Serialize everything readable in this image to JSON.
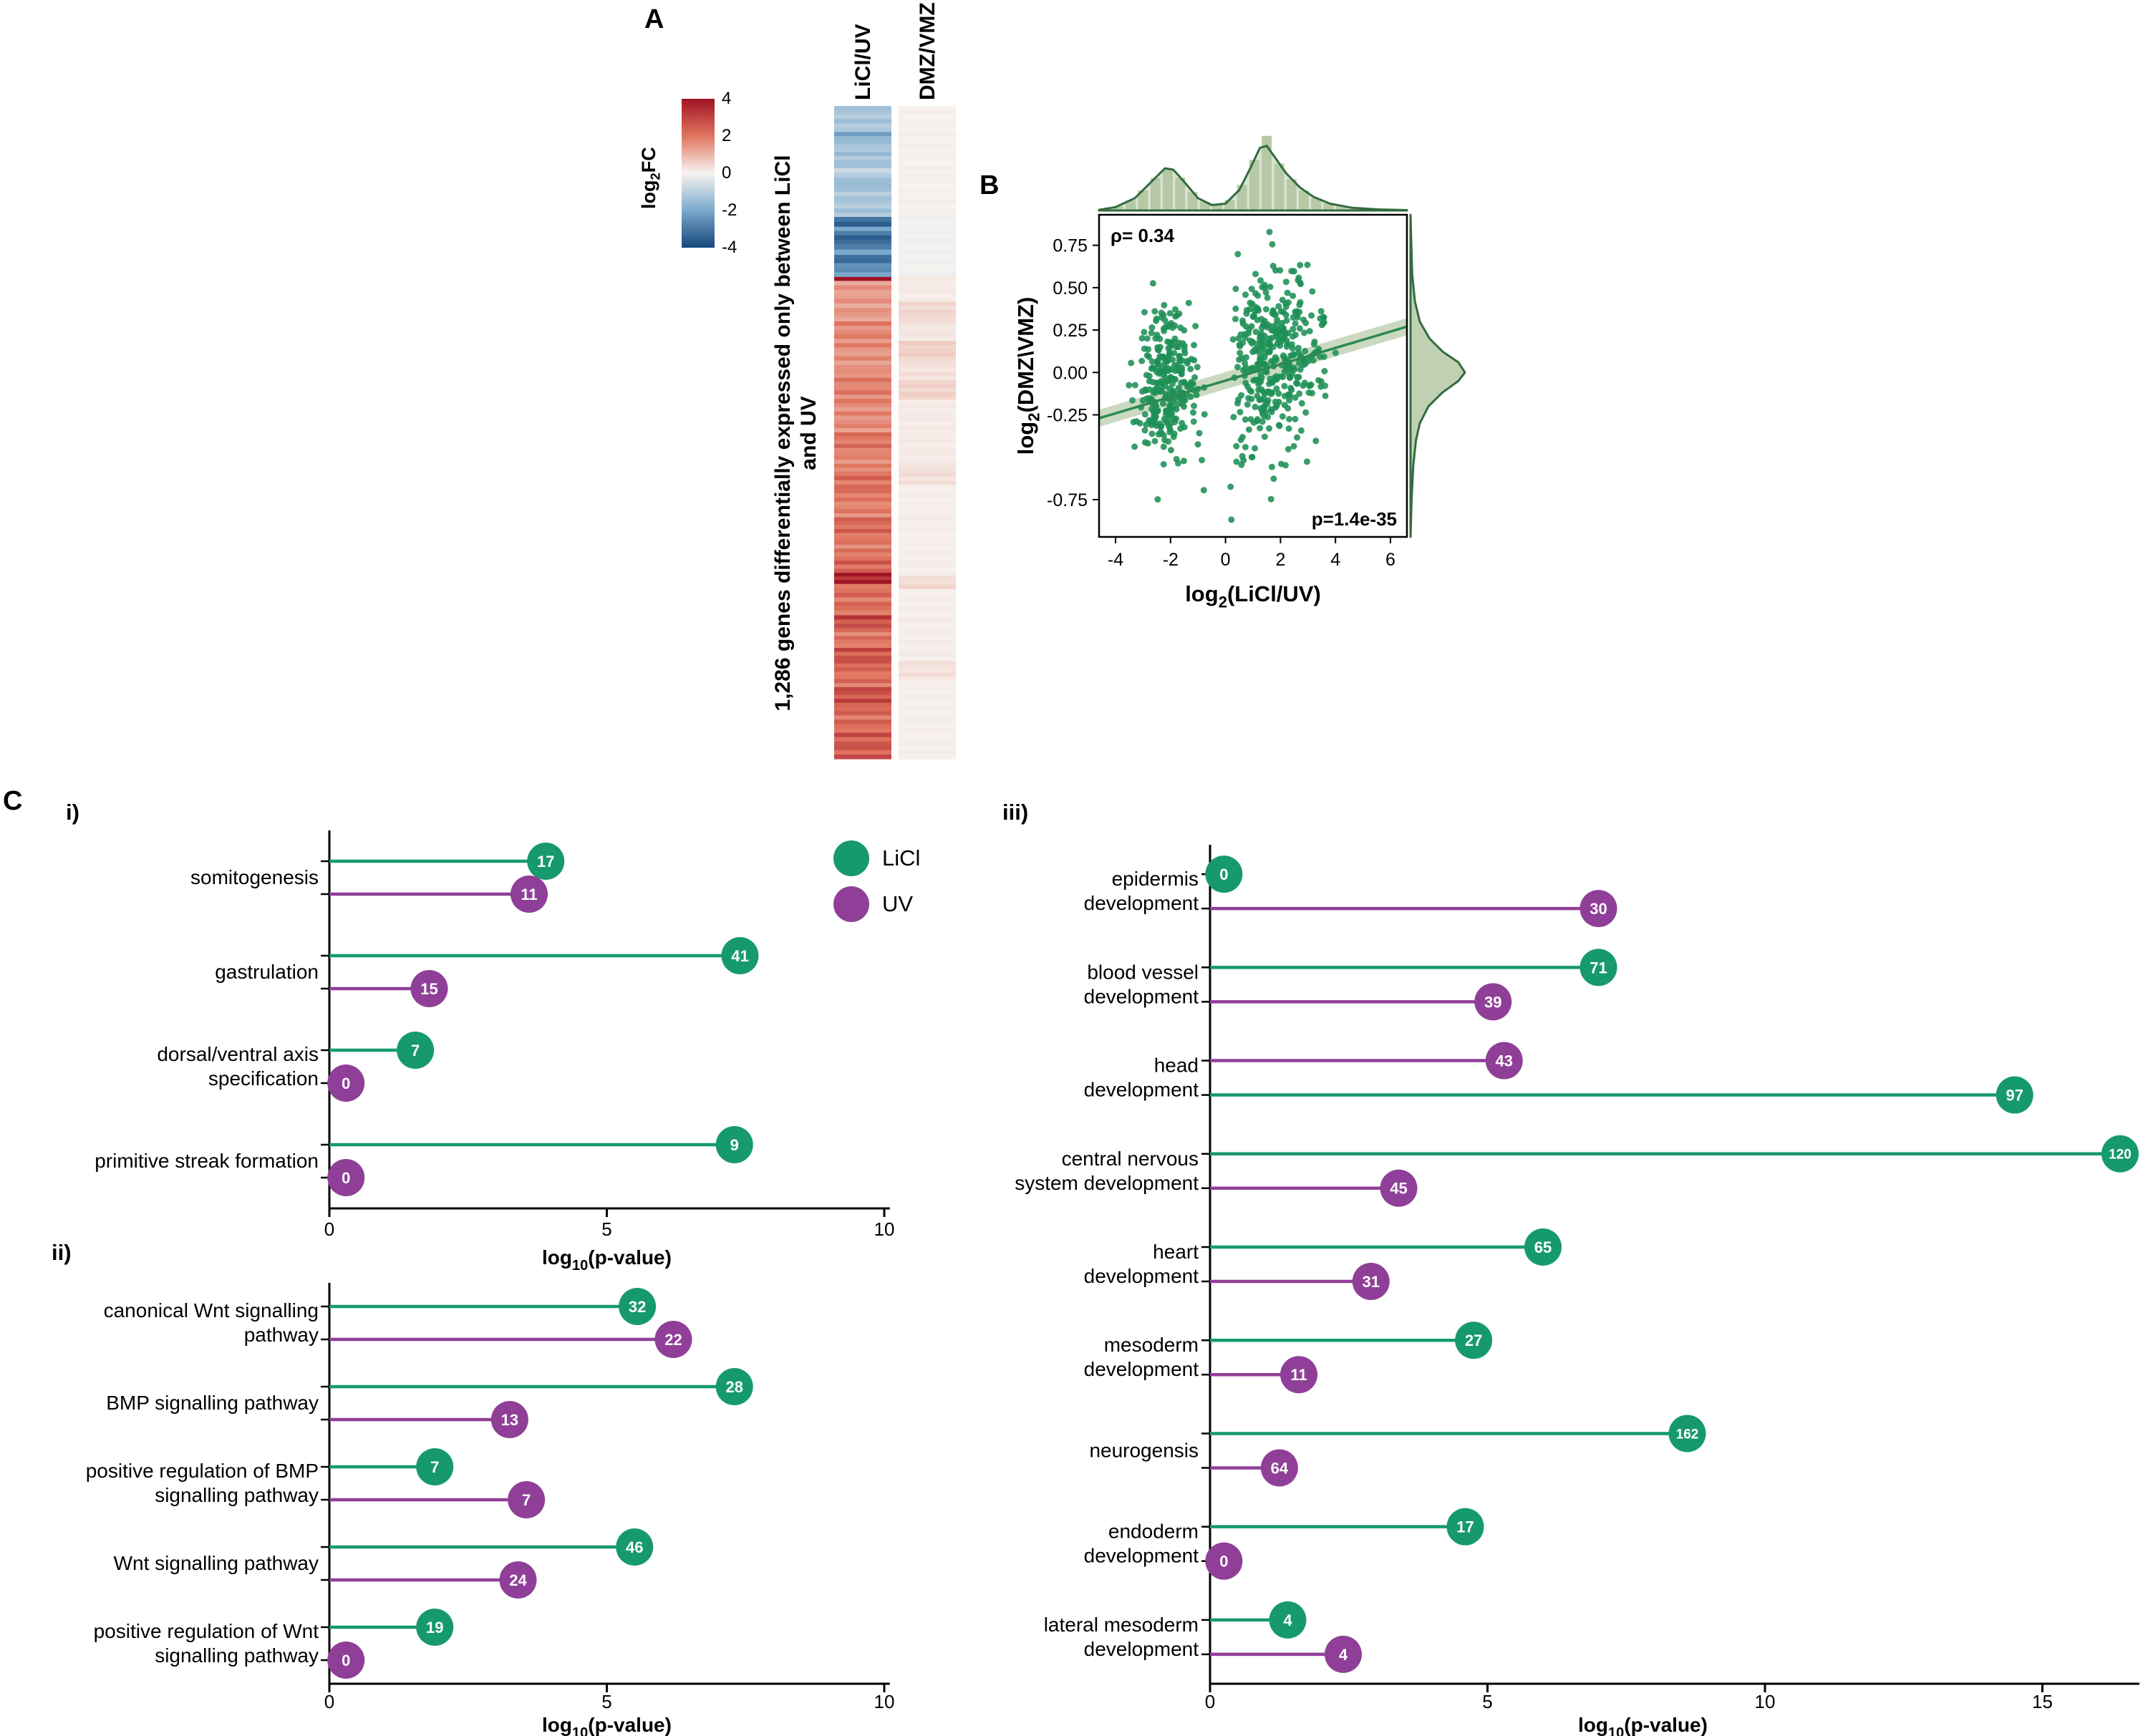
{
  "panels": {
    "a": "A",
    "b": "B",
    "c": "C"
  },
  "colors": {
    "licl_green": "#17996F",
    "uv_purple": "#8F3F97",
    "scatter_green": "#1E8F55",
    "regression_line": "#2C8A4E",
    "density_fill": "#B5C9A6",
    "density_line": "#336B3F",
    "heat_max_red": "#A01325",
    "heat_mid": "#F7F4F1",
    "heat_min_blue": "#16477C"
  },
  "legend": {
    "items": [
      {
        "label": "LiCl",
        "series": "LiCl"
      },
      {
        "label": "UV",
        "series": "UV"
      }
    ]
  },
  "chart_data": [
    {
      "id": "gene_heatmap",
      "type": "heatmap",
      "columns": [
        "LiCl/UV",
        "DMZ/VMZ"
      ],
      "row_axis_label_lines": [
        "1,286 genes differentially expressed only between  LiCl",
        "and UV"
      ],
      "n_genes": 1286,
      "colorbar": {
        "title": "log2FC",
        "ticks": [
          "4",
          "2",
          "0",
          "-2",
          "-4"
        ],
        "domain": [
          -4,
          4
        ]
      },
      "column_segments": {
        "LiCl/UV": [
          [
            0.0,
            0.04,
            -1.2
          ],
          [
            0.04,
            0.052,
            -2.0
          ],
          [
            0.052,
            0.095,
            -1.3
          ],
          [
            0.095,
            0.11,
            -0.9
          ],
          [
            0.11,
            0.125,
            -1.6
          ],
          [
            0.125,
            0.17,
            -1.2
          ],
          [
            0.17,
            0.185,
            -3.1
          ],
          [
            0.185,
            0.198,
            -2.5
          ],
          [
            0.198,
            0.212,
            -3.6
          ],
          [
            0.212,
            0.228,
            -2.4
          ],
          [
            0.228,
            0.247,
            -3.0
          ],
          [
            0.247,
            0.262,
            -2.2
          ],
          [
            0.262,
            0.268,
            3.8
          ],
          [
            0.268,
            0.33,
            1.4
          ],
          [
            0.33,
            0.37,
            1.7
          ],
          [
            0.37,
            0.41,
            1.5
          ],
          [
            0.41,
            0.455,
            1.8
          ],
          [
            0.455,
            0.5,
            1.6
          ],
          [
            0.5,
            0.53,
            2.0
          ],
          [
            0.53,
            0.56,
            1.7
          ],
          [
            0.56,
            0.6,
            2.1
          ],
          [
            0.6,
            0.63,
            1.8
          ],
          [
            0.63,
            0.66,
            2.2
          ],
          [
            0.66,
            0.69,
            1.9
          ],
          [
            0.69,
            0.715,
            2.3
          ],
          [
            0.715,
            0.732,
            3.9
          ],
          [
            0.732,
            0.78,
            2.1
          ],
          [
            0.78,
            0.8,
            2.8
          ],
          [
            0.8,
            0.83,
            2.0
          ],
          [
            0.83,
            0.86,
            2.6
          ],
          [
            0.86,
            0.89,
            2.1
          ],
          [
            0.89,
            0.92,
            2.7
          ],
          [
            0.92,
            0.96,
            2.2
          ],
          [
            0.96,
            1.0,
            2.5
          ]
        ],
        "DMZ/VMZ": [
          [
            0.0,
            0.17,
            0.06
          ],
          [
            0.17,
            0.26,
            -0.08
          ],
          [
            0.26,
            0.3,
            0.15
          ],
          [
            0.3,
            0.33,
            0.45
          ],
          [
            0.33,
            0.36,
            0.22
          ],
          [
            0.36,
            0.39,
            0.55
          ],
          [
            0.39,
            0.42,
            0.28
          ],
          [
            0.42,
            0.45,
            0.5
          ],
          [
            0.45,
            0.55,
            0.14
          ],
          [
            0.55,
            0.58,
            0.32
          ],
          [
            0.58,
            0.72,
            0.1
          ],
          [
            0.72,
            0.74,
            0.38
          ],
          [
            0.74,
            0.85,
            0.1
          ],
          [
            0.85,
            0.88,
            0.28
          ],
          [
            0.88,
            1.0,
            0.08
          ]
        ]
      }
    },
    {
      "id": "correlation_scatter",
      "type": "scatter",
      "xlabel": "log2(LiCl/UV)",
      "ylabel": "log2(DMZ\\VMZ)",
      "correlation_text": "ρ= 0.34",
      "pvalue_text": "p=1.4e-35",
      "xlim": [
        -4.6,
        6.6
      ],
      "ylim": [
        -0.97,
        0.93
      ],
      "x_ticks": [
        "-4",
        "-2",
        "0",
        "2",
        "4",
        "6"
      ],
      "y_ticks": [
        "0.75",
        "0.50",
        "0.25",
        "0.00",
        "-0.25",
        "-0.75"
      ],
      "point_clusters": [
        {
          "n": 280,
          "cx": -2.1,
          "sx": 0.55,
          "cy": -0.06,
          "sy": 0.21,
          "xmin": -4.5,
          "xmax": -0.75
        },
        {
          "n": 380,
          "cx": 1.7,
          "sx": 0.85,
          "cy": 0.07,
          "sy": 0.28,
          "xmin": 0.2,
          "xmax": 4.6
        },
        {
          "n": 8,
          "cx": 0.6,
          "sx": 1.6,
          "cy": -0.62,
          "sy": 0.16,
          "xmin": -2.6,
          "xmax": 3.0
        }
      ],
      "regression_line": {
        "x1": -4.6,
        "y1": -0.27,
        "x2": 6.6,
        "y2": 0.27
      },
      "top_density": [
        [
          -4.6,
          0.01
        ],
        [
          -4.0,
          0.05
        ],
        [
          -3.3,
          0.18
        ],
        [
          -2.7,
          0.42
        ],
        [
          -2.2,
          0.62
        ],
        [
          -1.9,
          0.6
        ],
        [
          -1.5,
          0.42
        ],
        [
          -1.0,
          0.18
        ],
        [
          -0.5,
          0.08
        ],
        [
          0.0,
          0.1
        ],
        [
          0.5,
          0.3
        ],
        [
          0.9,
          0.62
        ],
        [
          1.25,
          0.92
        ],
        [
          1.5,
          0.95
        ],
        [
          1.8,
          0.78
        ],
        [
          2.2,
          0.55
        ],
        [
          2.7,
          0.34
        ],
        [
          3.2,
          0.2
        ],
        [
          3.8,
          0.1
        ],
        [
          4.6,
          0.04
        ],
        [
          5.6,
          0.015
        ],
        [
          6.6,
          0.005
        ]
      ],
      "right_density": [
        [
          -0.97,
          0.0
        ],
        [
          -0.75,
          0.02
        ],
        [
          -0.55,
          0.05
        ],
        [
          -0.4,
          0.1
        ],
        [
          -0.3,
          0.17
        ],
        [
          -0.2,
          0.33
        ],
        [
          -0.12,
          0.58
        ],
        [
          -0.05,
          0.88
        ],
        [
          0.0,
          1.0
        ],
        [
          0.06,
          0.88
        ],
        [
          0.12,
          0.6
        ],
        [
          0.2,
          0.35
        ],
        [
          0.3,
          0.17
        ],
        [
          0.42,
          0.08
        ],
        [
          0.58,
          0.03
        ],
        [
          0.8,
          0.01
        ],
        [
          0.93,
          0.0
        ]
      ]
    },
    {
      "id": "go_terms_i",
      "type": "lollipop",
      "panel": "i)",
      "xlabel": "log10(p-value)",
      "x_ticks": [
        0,
        5,
        10
      ],
      "xmax_units": 10.1,
      "series_colors": {
        "LiCl": "licl_green",
        "UV": "uv_purple"
      },
      "categories": [
        {
          "label_lines": [
            "somitogenesis"
          ],
          "points": [
            {
              "series": "LiCl",
              "log10_p": 3.9,
              "gene_count": 17
            },
            {
              "series": "UV",
              "log10_p": 3.6,
              "gene_count": 11
            }
          ]
        },
        {
          "label_lines": [
            "gastrulation"
          ],
          "points": [
            {
              "series": "LiCl",
              "log10_p": 7.4,
              "gene_count": 41
            },
            {
              "series": "UV",
              "log10_p": 1.8,
              "gene_count": 15
            }
          ]
        },
        {
          "label_lines": [
            "dorsal/ventral axis",
            "specification"
          ],
          "points": [
            {
              "series": "LiCl",
              "log10_p": 1.55,
              "gene_count": 7
            },
            {
              "series": "UV",
              "log10_p": 0.3,
              "gene_count": 0
            }
          ]
        },
        {
          "label_lines": [
            "primitive streak formation"
          ],
          "points": [
            {
              "series": "LiCl",
              "log10_p": 7.3,
              "gene_count": 9
            },
            {
              "series": "UV",
              "log10_p": 0.3,
              "gene_count": 0
            }
          ]
        }
      ]
    },
    {
      "id": "go_terms_ii",
      "type": "lollipop",
      "panel": "ii)",
      "xlabel": "log10(p-value)",
      "x_ticks": [
        0,
        5,
        10
      ],
      "xmax_units": 10.1,
      "series_colors": {
        "LiCl": "licl_green",
        "UV": "uv_purple"
      },
      "categories": [
        {
          "label_lines": [
            "canonical Wnt signalling",
            "pathway"
          ],
          "points": [
            {
              "series": "LiCl",
              "log10_p": 5.55,
              "gene_count": 32
            },
            {
              "series": "UV",
              "log10_p": 6.2,
              "gene_count": 22
            }
          ]
        },
        {
          "label_lines": [
            "BMP signalling pathway"
          ],
          "points": [
            {
              "series": "LiCl",
              "log10_p": 7.3,
              "gene_count": 28
            },
            {
              "series": "UV",
              "log10_p": 3.25,
              "gene_count": 13
            }
          ]
        },
        {
          "label_lines": [
            "positive regulation of BMP",
            "signalling pathway"
          ],
          "points": [
            {
              "series": "LiCl",
              "log10_p": 1.9,
              "gene_count": 7
            },
            {
              "series": "UV",
              "log10_p": 3.55,
              "gene_count": 7
            }
          ]
        },
        {
          "label_lines": [
            "Wnt signalling pathway"
          ],
          "points": [
            {
              "series": "LiCl",
              "log10_p": 5.5,
              "gene_count": 46
            },
            {
              "series": "UV",
              "log10_p": 3.4,
              "gene_count": 24
            }
          ]
        },
        {
          "label_lines": [
            "positive regulation of Wnt",
            "signalling pathway"
          ],
          "points": [
            {
              "series": "LiCl",
              "log10_p": 1.9,
              "gene_count": 19
            },
            {
              "series": "UV",
              "log10_p": 0.3,
              "gene_count": 0
            }
          ]
        }
      ]
    },
    {
      "id": "go_terms_iii",
      "type": "lollipop",
      "panel": "iii)",
      "xlabel": "log10(p-value)",
      "x_ticks": [
        0,
        5,
        10,
        15
      ],
      "xmax_units": 16.75,
      "series_colors": {
        "LiCl": "licl_green",
        "UV": "uv_purple"
      },
      "categories": [
        {
          "label_lines": [
            "epidermis",
            "development"
          ],
          "points": [
            {
              "series": "LiCl",
              "log10_p": 0.25,
              "gene_count": 0
            },
            {
              "series": "UV",
              "log10_p": 7.0,
              "gene_count": 30
            }
          ]
        },
        {
          "label_lines": [
            "blood vessel",
            "development"
          ],
          "points": [
            {
              "series": "LiCl",
              "log10_p": 7.0,
              "gene_count": 71
            },
            {
              "series": "UV",
              "log10_p": 5.1,
              "gene_count": 39
            }
          ]
        },
        {
          "label_lines": [
            "head",
            "development"
          ],
          "points": [
            {
              "series": "UV",
              "log10_p": 5.3,
              "gene_count": 43
            },
            {
              "series": "LiCl",
              "log10_p": 14.5,
              "gene_count": 97
            }
          ]
        },
        {
          "label_lines": [
            "central nervous",
            "system development"
          ],
          "points": [
            {
              "series": "LiCl",
              "log10_p": 16.4,
              "gene_count": 120
            },
            {
              "series": "UV",
              "log10_p": 3.4,
              "gene_count": 45
            }
          ]
        },
        {
          "label_lines": [
            "heart",
            "development"
          ],
          "points": [
            {
              "series": "LiCl",
              "log10_p": 6.0,
              "gene_count": 65
            },
            {
              "series": "UV",
              "log10_p": 2.9,
              "gene_count": 31
            }
          ]
        },
        {
          "label_lines": [
            "mesoderm",
            "development"
          ],
          "points": [
            {
              "series": "LiCl",
              "log10_p": 4.75,
              "gene_count": 27
            },
            {
              "series": "UV",
              "log10_p": 1.6,
              "gene_count": 11
            }
          ]
        },
        {
          "label_lines": [
            "neurogensis"
          ],
          "points": [
            {
              "series": "LiCl",
              "log10_p": 8.6,
              "gene_count": 162
            },
            {
              "series": "UV",
              "log10_p": 1.25,
              "gene_count": 64
            }
          ]
        },
        {
          "label_lines": [
            "endoderm",
            "development"
          ],
          "points": [
            {
              "series": "LiCl",
              "log10_p": 4.6,
              "gene_count": 17
            },
            {
              "series": "UV",
              "log10_p": 0.25,
              "gene_count": 0
            }
          ]
        },
        {
          "label_lines": [
            "lateral mesoderm",
            "development"
          ],
          "points": [
            {
              "series": "LiCl",
              "log10_p": 1.4,
              "gene_count": 4
            },
            {
              "series": "UV",
              "log10_p": 2.4,
              "gene_count": 4
            }
          ]
        }
      ]
    }
  ]
}
